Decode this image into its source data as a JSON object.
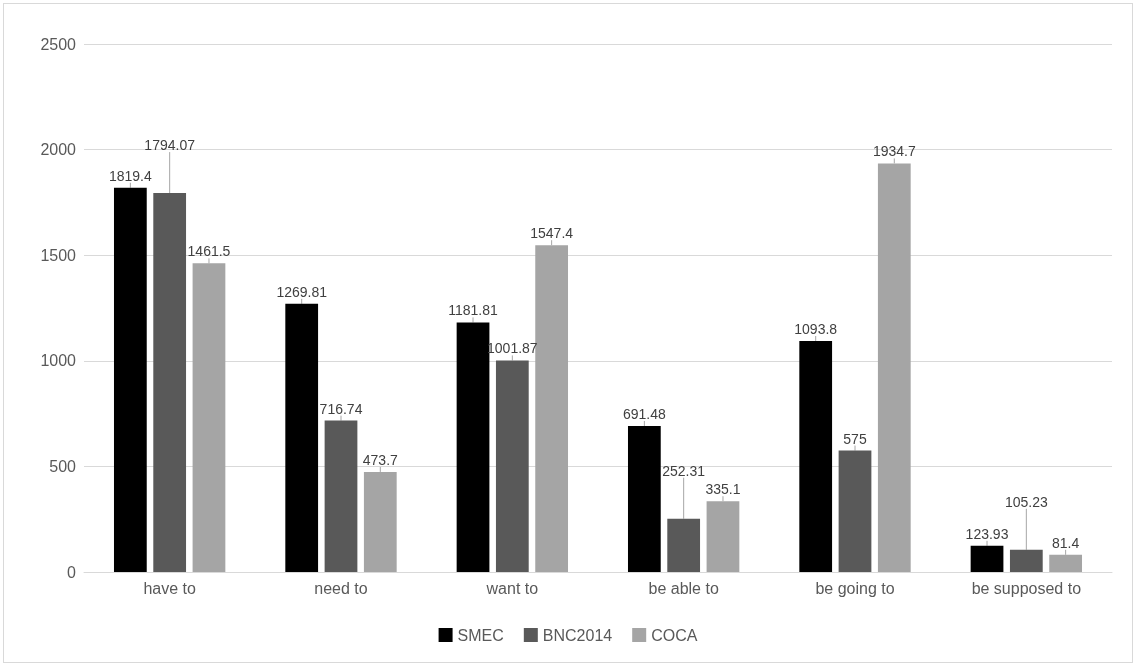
{
  "chart_data": {
    "type": "bar",
    "categories": [
      "have to",
      "need to",
      "want to",
      "be able to",
      "be going to",
      "be supposed to"
    ],
    "series": [
      {
        "name": "SMEC",
        "color": "#000000",
        "values": [
          1819.4,
          1269.81,
          1181.81,
          691.48,
          1093.8,
          123.93
        ]
      },
      {
        "name": "BNC2014",
        "color": "#595959",
        "values": [
          1794.07,
          716.74,
          1001.87,
          252.31,
          575,
          105.23
        ]
      },
      {
        "name": "COCA",
        "color": "#a5a5a5",
        "values": [
          1461.5,
          473.7,
          1547.4,
          335.1,
          1934.7,
          81.4
        ]
      }
    ],
    "ylim": [
      0,
      2500
    ],
    "yticks": [
      0,
      500,
      1000,
      1500,
      2000,
      2500
    ],
    "grid": "y",
    "legend": "bottom",
    "data_labels": true
  }
}
